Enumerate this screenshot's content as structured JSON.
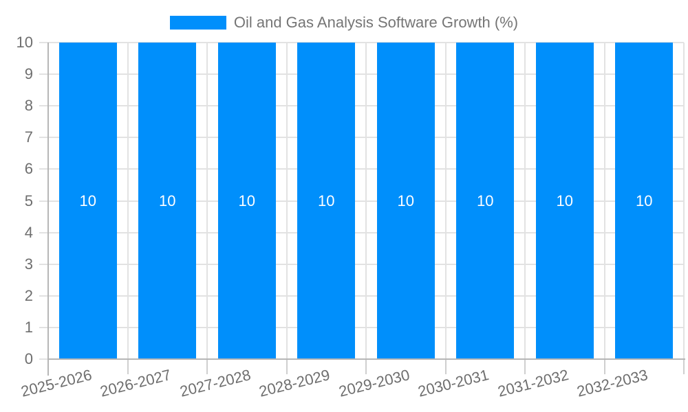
{
  "chart_data": {
    "type": "bar",
    "title": "Oil and Gas Analysis Software Growth (%)",
    "categories": [
      "2025-2026",
      "2026-2027",
      "2027-2028",
      "2028-2029",
      "2029-2030",
      "2030-2031",
      "2031-2032",
      "2032-2033"
    ],
    "series": [
      {
        "name": "Oil and Gas Analysis Software Growth (%)",
        "values": [
          10,
          10,
          10,
          10,
          10,
          10,
          10,
          10
        ]
      }
    ],
    "value_labels": [
      "10",
      "10",
      "10",
      "10",
      "10",
      "10",
      "10",
      "10"
    ],
    "ylim": [
      0,
      10
    ],
    "yticks": [
      0,
      1,
      2,
      3,
      4,
      5,
      6,
      7,
      8,
      9,
      10
    ],
    "legend_position": "top",
    "grid": true,
    "x_label_rotation_deg": -14,
    "colors": {
      "bar": "#008FFB",
      "bar_value_label": "#ffffff",
      "axis_label": "#6e6e6e",
      "legend_text": "#757575",
      "gridline": "#e2e2e2",
      "axis_line": "#b6b6b6",
      "tick": "#cfcfcf",
      "background": "#ffffff"
    }
  }
}
